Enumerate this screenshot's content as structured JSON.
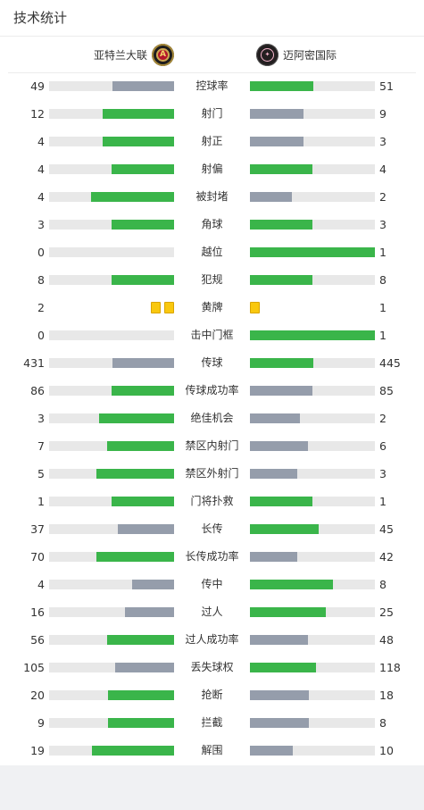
{
  "section_title": "技术统计",
  "teams": {
    "home": {
      "name": "亚特兰大联",
      "logo_icon": "atlanta-united-logo-icon",
      "logo_text": "A"
    },
    "away": {
      "name": "迈阿密国际",
      "logo_icon": "inter-miami-logo-icon",
      "logo_text": "✦"
    }
  },
  "colors": {
    "leading_bar": "#3ab54a",
    "trailing_bar": "#959dab",
    "track": "#e8e8e8",
    "yellow_card": "#f9c80e"
  },
  "stats": [
    {
      "label": "控球率",
      "home": "49",
      "away": "51"
    },
    {
      "label": "射门",
      "home": "12",
      "away": "9"
    },
    {
      "label": "射正",
      "home": "4",
      "away": "3"
    },
    {
      "label": "射偏",
      "home": "4",
      "away": "4"
    },
    {
      "label": "被封堵",
      "home": "4",
      "away": "2"
    },
    {
      "label": "角球",
      "home": "3",
      "away": "3"
    },
    {
      "label": "越位",
      "home": "0",
      "away": "1"
    },
    {
      "label": "犯规",
      "home": "8",
      "away": "8"
    },
    {
      "label": "黄牌",
      "home": "2",
      "away": "1",
      "type": "cards"
    },
    {
      "label": "击中门框",
      "home": "0",
      "away": "1"
    },
    {
      "label": "传球",
      "home": "431",
      "away": "445"
    },
    {
      "label": "传球成功率",
      "home": "86",
      "away": "85"
    },
    {
      "label": "绝佳机会",
      "home": "3",
      "away": "2"
    },
    {
      "label": "禁区内射门",
      "home": "7",
      "away": "6"
    },
    {
      "label": "禁区外射门",
      "home": "5",
      "away": "3"
    },
    {
      "label": "门将扑救",
      "home": "1",
      "away": "1"
    },
    {
      "label": "长传",
      "home": "37",
      "away": "45"
    },
    {
      "label": "长传成功率",
      "home": "70",
      "away": "42"
    },
    {
      "label": "传中",
      "home": "4",
      "away": "8"
    },
    {
      "label": "过人",
      "home": "16",
      "away": "25"
    },
    {
      "label": "过人成功率",
      "home": "56",
      "away": "48"
    },
    {
      "label": "丢失球权",
      "home": "105",
      "away": "118"
    },
    {
      "label": "抢断",
      "home": "20",
      "away": "18"
    },
    {
      "label": "拦截",
      "home": "9",
      "away": "8"
    },
    {
      "label": "解围",
      "home": "19",
      "away": "10"
    }
  ]
}
